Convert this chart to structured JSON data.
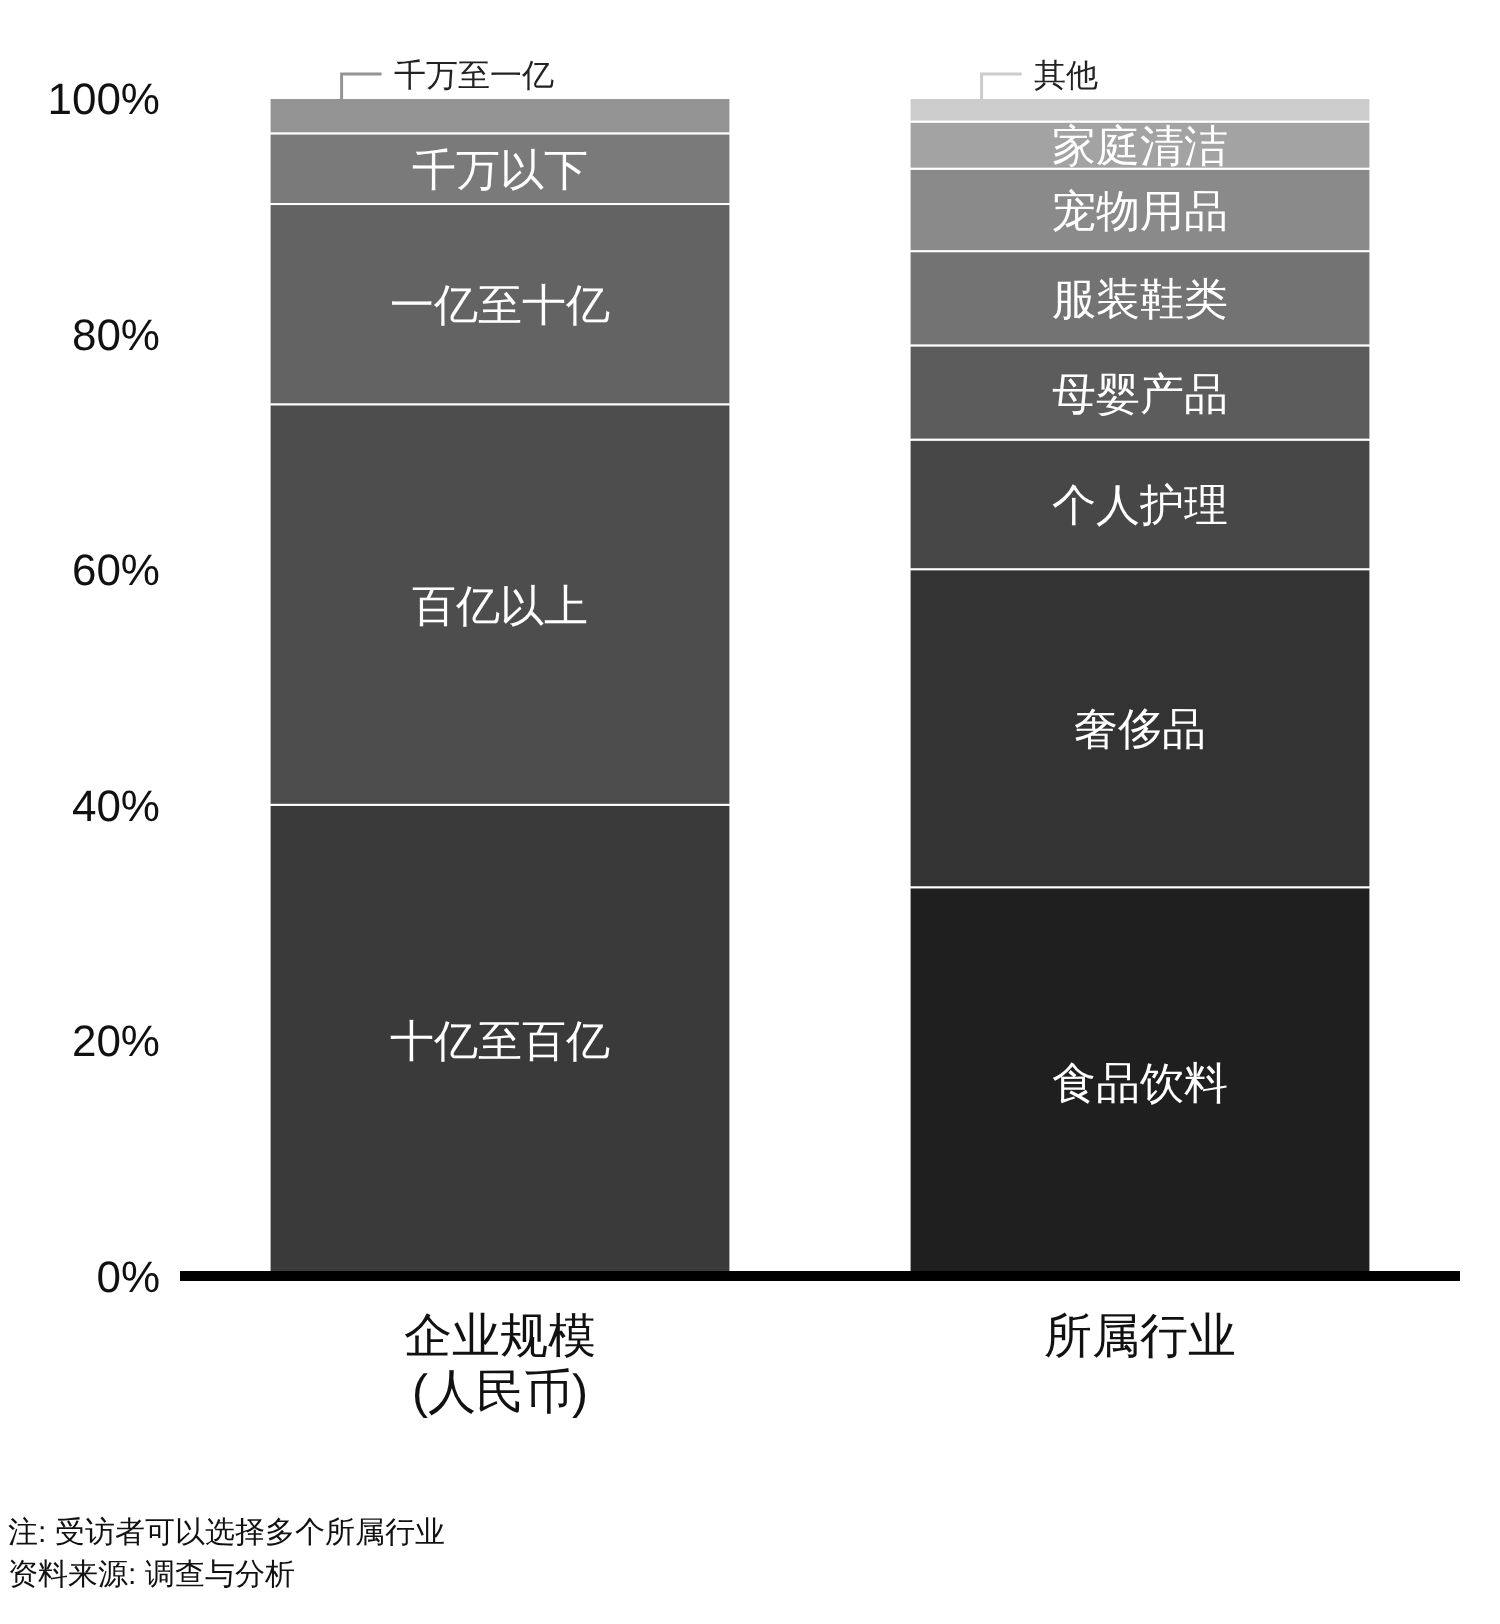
{
  "chart_data": {
    "type": "bar",
    "stacked": true,
    "categories": [
      "企业规模\n(人民币)",
      "所属行业"
    ],
    "ylim": [
      0,
      100
    ],
    "yticks": [
      {
        "value": 0,
        "label": "0%"
      },
      {
        "value": 20,
        "label": "20%"
      },
      {
        "value": 40,
        "label": "40%"
      },
      {
        "value": 60,
        "label": "60%"
      },
      {
        "value": 80,
        "label": "80%"
      },
      {
        "value": 100,
        "label": "100%"
      }
    ],
    "grid": false,
    "legend": "top",
    "series": [
      {
        "name": "十亿至百亿",
        "color": "#3a3a3a",
        "values": [
          40,
          null
        ]
      },
      {
        "name": "百亿以上",
        "color": "#4d4d4d",
        "values": [
          34,
          null
        ]
      },
      {
        "name": "一亿至十亿",
        "color": "#636363",
        "values": [
          17,
          null
        ]
      },
      {
        "name": "千万以下",
        "color": "#7a7a7a",
        "values": [
          6,
          null
        ]
      },
      {
        "name": "千万至一亿",
        "color": "#949494",
        "values": [
          3,
          null
        ]
      },
      {
        "name": "食品饮料",
        "color": "#1f1f1f",
        "values": [
          null,
          33
        ]
      },
      {
        "name": "奢侈品",
        "color": "#333333",
        "values": [
          null,
          27
        ]
      },
      {
        "name": "个人护理",
        "color": "#474747",
        "values": [
          null,
          11
        ]
      },
      {
        "name": "母婴产品",
        "color": "#5c5c5c",
        "values": [
          null,
          8
        ]
      },
      {
        "name": "服装鞋类",
        "color": "#737373",
        "values": [
          null,
          8
        ]
      },
      {
        "name": "宠物用品",
        "color": "#8a8a8a",
        "values": [
          null,
          7
        ]
      },
      {
        "name": "家庭清洁",
        "color": "#a3a3a3",
        "values": [
          null,
          4
        ]
      },
      {
        "name": "其他",
        "color": "#cccccc",
        "values": [
          null,
          2
        ]
      }
    ],
    "annotations": [
      "注: 受访者可以选择多个所属行业",
      "资料来源: 调查与分析"
    ]
  }
}
